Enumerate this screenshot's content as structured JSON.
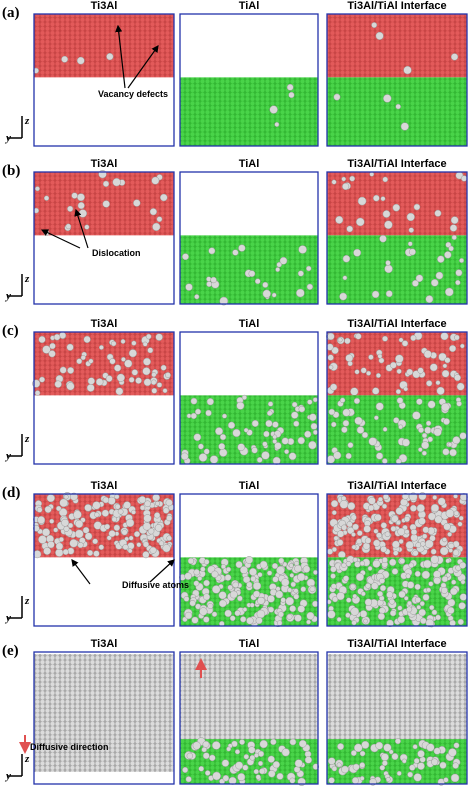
{
  "rows": [
    {
      "label": "(a)",
      "panels": [
        {
          "title": "Ti3Al"
        },
        {
          "title": "TiAl"
        },
        {
          "title": "Ti3Al/TiAl Interface"
        }
      ],
      "annotation": "Vacancy defects"
    },
    {
      "label": "(b)",
      "panels": [
        {
          "title": "Ti3Al"
        },
        {
          "title": "TiAl"
        },
        {
          "title": "Ti3Al/TiAl Interface"
        }
      ],
      "annotation": "Dislocation"
    },
    {
      "label": "(c)",
      "panels": [
        {
          "title": "Ti3Al"
        },
        {
          "title": "TiAl"
        },
        {
          "title": "Ti3Al/TiAl Interface"
        }
      ]
    },
    {
      "label": "(d)",
      "panels": [
        {
          "title": "Ti3Al"
        },
        {
          "title": "TiAl"
        },
        {
          "title": "Ti3Al/TiAl Interface"
        }
      ],
      "annotation": "Diffusive atoms"
    },
    {
      "label": "(e)",
      "panels": [
        {
          "title": "Ti3Al"
        },
        {
          "title": "TiAl"
        },
        {
          "title": "Ti3Al/TiAl Interface"
        }
      ],
      "annotation": "Diffusive direction"
    }
  ],
  "axes": {
    "y": "y",
    "z": "z"
  }
}
